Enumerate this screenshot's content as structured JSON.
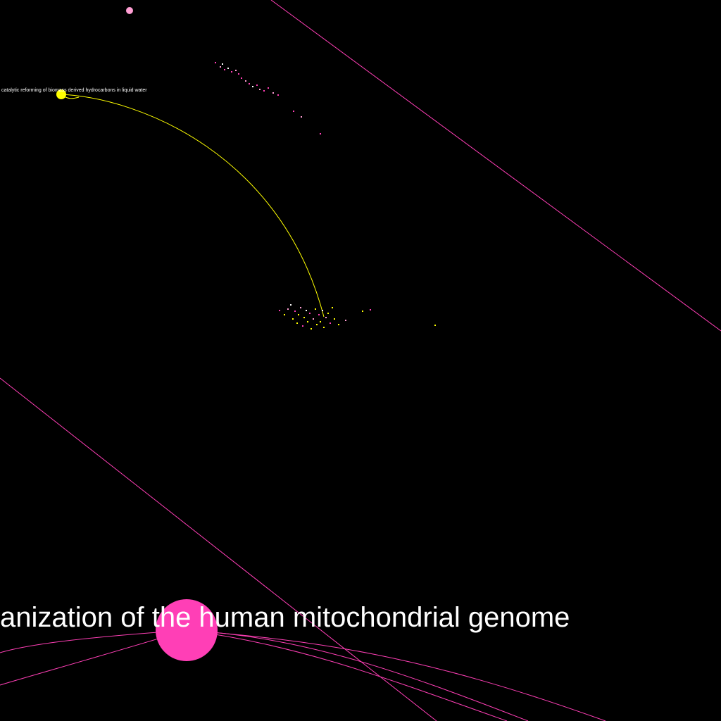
{
  "graph": {
    "background": "#000000",
    "colors": {
      "pink": "#ff3fb6",
      "light_pink": "#ff9fd4",
      "yellow": "#ffff00",
      "white": "#ffffff"
    },
    "labels": {
      "small_node": "catalytic reforming of biomass derived hydrocarbons in liquid water",
      "large_node": "anization of the human mitochondrial genome"
    }
  }
}
